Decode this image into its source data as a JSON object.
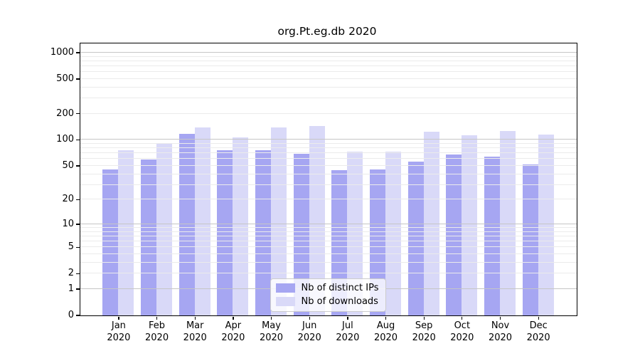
{
  "title": "org.Pt.eg.db 2020",
  "chart_data": {
    "type": "bar",
    "title": "org.Pt.eg.db 2020",
    "categories": [
      "Jan",
      "Feb",
      "Mar",
      "Apr",
      "May",
      "Jun",
      "Jul",
      "Aug",
      "Sep",
      "Oct",
      "Nov",
      "Dec"
    ],
    "x_tick_second_line": "2020",
    "series": [
      {
        "name": "Nb of distinct IPs",
        "color": "#a6a6f2",
        "values": [
          45,
          59,
          117,
          75,
          75,
          68,
          44,
          45,
          56,
          67,
          64,
          51
        ]
      },
      {
        "name": "Nb of downloads",
        "color": "#d9d9f8",
        "values": [
          75,
          90,
          138,
          105,
          139,
          142,
          72,
          72,
          122,
          111,
          125,
          115
        ]
      }
    ],
    "y_ticks": [
      1000,
      500,
      200,
      100,
      50,
      20,
      10,
      5,
      2,
      1,
      0
    ],
    "y_scale": "log1p",
    "ylim": [
      0,
      1274
    ],
    "grid": true,
    "grid_minor_ticks": [
      2,
      3,
      4,
      5,
      6,
      7,
      8,
      9,
      20,
      30,
      40,
      50,
      60,
      70,
      80,
      90,
      200,
      300,
      400,
      500,
      600,
      700,
      800,
      900
    ],
    "grid_major_ticks": [
      1,
      10,
      100,
      1000
    ],
    "legend_position": "lower center"
  },
  "colors": {
    "bar_distinct_ips": "#a6a6f2",
    "bar_downloads": "#d9d9f8",
    "grid_major": "#c6c6c6",
    "grid_minor": "#ebebeb",
    "spine": "#000000",
    "legend_border": "#cccccc"
  }
}
